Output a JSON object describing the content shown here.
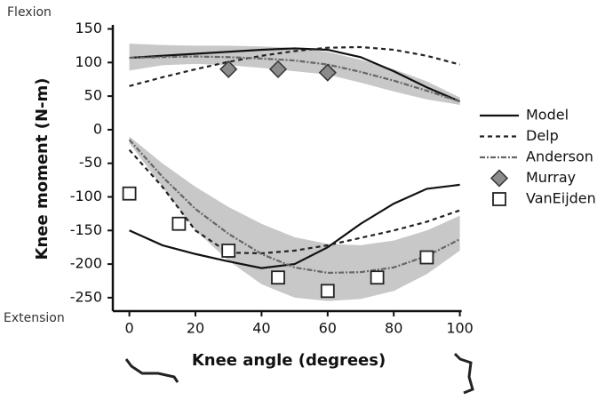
{
  "chart_data": {
    "type": "line",
    "xlabel": "Knee angle (degrees)",
    "ylabel": "Knee moment (N-m)",
    "annotations": [
      "Flexion",
      "Extension"
    ],
    "xlim": [
      -5,
      100
    ],
    "ylim": [
      -270,
      156
    ],
    "xticks": [
      0,
      20,
      40,
      60,
      80,
      100
    ],
    "yticks": [
      150,
      100,
      50,
      0,
      -50,
      -100,
      -150,
      -200,
      -250
    ],
    "band_color": "#c8c8c8",
    "series": [
      {
        "name": "Model",
        "color": "#111111",
        "style": "solid",
        "x": [
          0,
          10,
          20,
          30,
          40,
          50,
          60,
          70,
          80,
          90,
          100,
          null,
          0,
          10,
          20,
          30,
          40,
          50,
          60,
          70,
          80,
          90,
          100
        ],
        "values": [
          107,
          110,
          113,
          116,
          119,
          121,
          119,
          108,
          87,
          63,
          42,
          null,
          -150,
          -172,
          -185,
          -196,
          -206,
          -200,
          -175,
          -140,
          -110,
          -88,
          -82
        ]
      },
      {
        "name": "Delp",
        "color": "#222222",
        "style": "dashed",
        "x": [
          0,
          10,
          20,
          30,
          40,
          50,
          60,
          70,
          80,
          90,
          100,
          null,
          0,
          10,
          20,
          30,
          40,
          50,
          60,
          70,
          80,
          90,
          100
        ],
        "values": [
          65,
          78,
          90,
          101,
          110,
          117,
          122,
          123,
          119,
          110,
          97,
          null,
          -30,
          -85,
          -150,
          -183,
          -184,
          -180,
          -172,
          -161,
          -150,
          -137,
          -120
        ]
      },
      {
        "name": "Anderson",
        "color": "#666666",
        "style": "dotted",
        "x": [
          0,
          10,
          20,
          30,
          40,
          50,
          60,
          70,
          80,
          90,
          100,
          null,
          0,
          10,
          20,
          30,
          40,
          50,
          60,
          70,
          80,
          90,
          100
        ],
        "values": [
          107,
          108,
          109,
          108,
          106,
          103,
          97,
          86,
          73,
          58,
          42,
          null,
          -15,
          -70,
          -118,
          -155,
          -185,
          -205,
          -213,
          -212,
          -205,
          -188,
          -163
        ],
        "band_low": [
          88,
          96,
          98,
          96,
          92,
          87,
          82,
          70,
          57,
          45,
          37,
          null,
          -20,
          -85,
          -150,
          -195,
          -230,
          -250,
          -255,
          -252,
          -240,
          -215,
          -180
        ],
        "band_high": [
          128,
          126,
          125,
          125,
          124,
          122,
          116,
          104,
          90,
          72,
          48,
          null,
          -10,
          -50,
          -85,
          -115,
          -140,
          -160,
          -170,
          -172,
          -165,
          -150,
          -128
        ]
      },
      {
        "name": "Murray",
        "color": "#8c8c8c",
        "style": "diamond",
        "x": [
          30,
          45,
          60
        ],
        "values": [
          90,
          90,
          85
        ]
      },
      {
        "name": "VanEijden",
        "color": "#ffffff",
        "style": "square",
        "x": [
          0,
          15,
          30,
          45,
          60,
          75,
          90
        ],
        "values": [
          -95,
          -140,
          -180,
          -220,
          -240,
          -220,
          -190
        ]
      }
    ]
  }
}
